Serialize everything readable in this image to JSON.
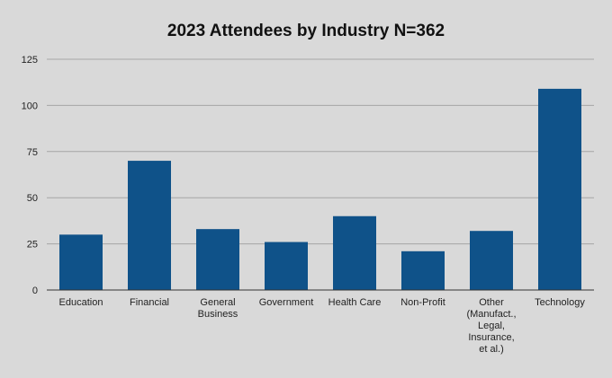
{
  "chart_data": {
    "type": "bar",
    "title": "2023 Attendees by Industry N=362",
    "categories": [
      "Education",
      "Financial",
      "General Business",
      "Government",
      "Health Care",
      "Non-Profit",
      "Other (Manufact., Legal, Insurance, et al.)",
      "Technology"
    ],
    "category_label_lines": [
      [
        "Education"
      ],
      [
        "Financial"
      ],
      [
        "General",
        "Business"
      ],
      [
        "Government"
      ],
      [
        "Health Care"
      ],
      [
        "Non-Profit"
      ],
      [
        "Other",
        "(Manufact.,",
        "Legal,",
        "Insurance,",
        "et al.)"
      ],
      [
        "Technology"
      ]
    ],
    "values": [
      30,
      70,
      33,
      26,
      40,
      21,
      32,
      109
    ],
    "ylim": [
      0,
      125
    ],
    "yticks": [
      0,
      25,
      50,
      75,
      100,
      125
    ],
    "grid": true,
    "legend": "none",
    "xlabel": "",
    "ylabel": "",
    "colors": {
      "bar": "#0f5289",
      "background": "#d9d9d9",
      "grid": "#a6a6a6"
    }
  }
}
